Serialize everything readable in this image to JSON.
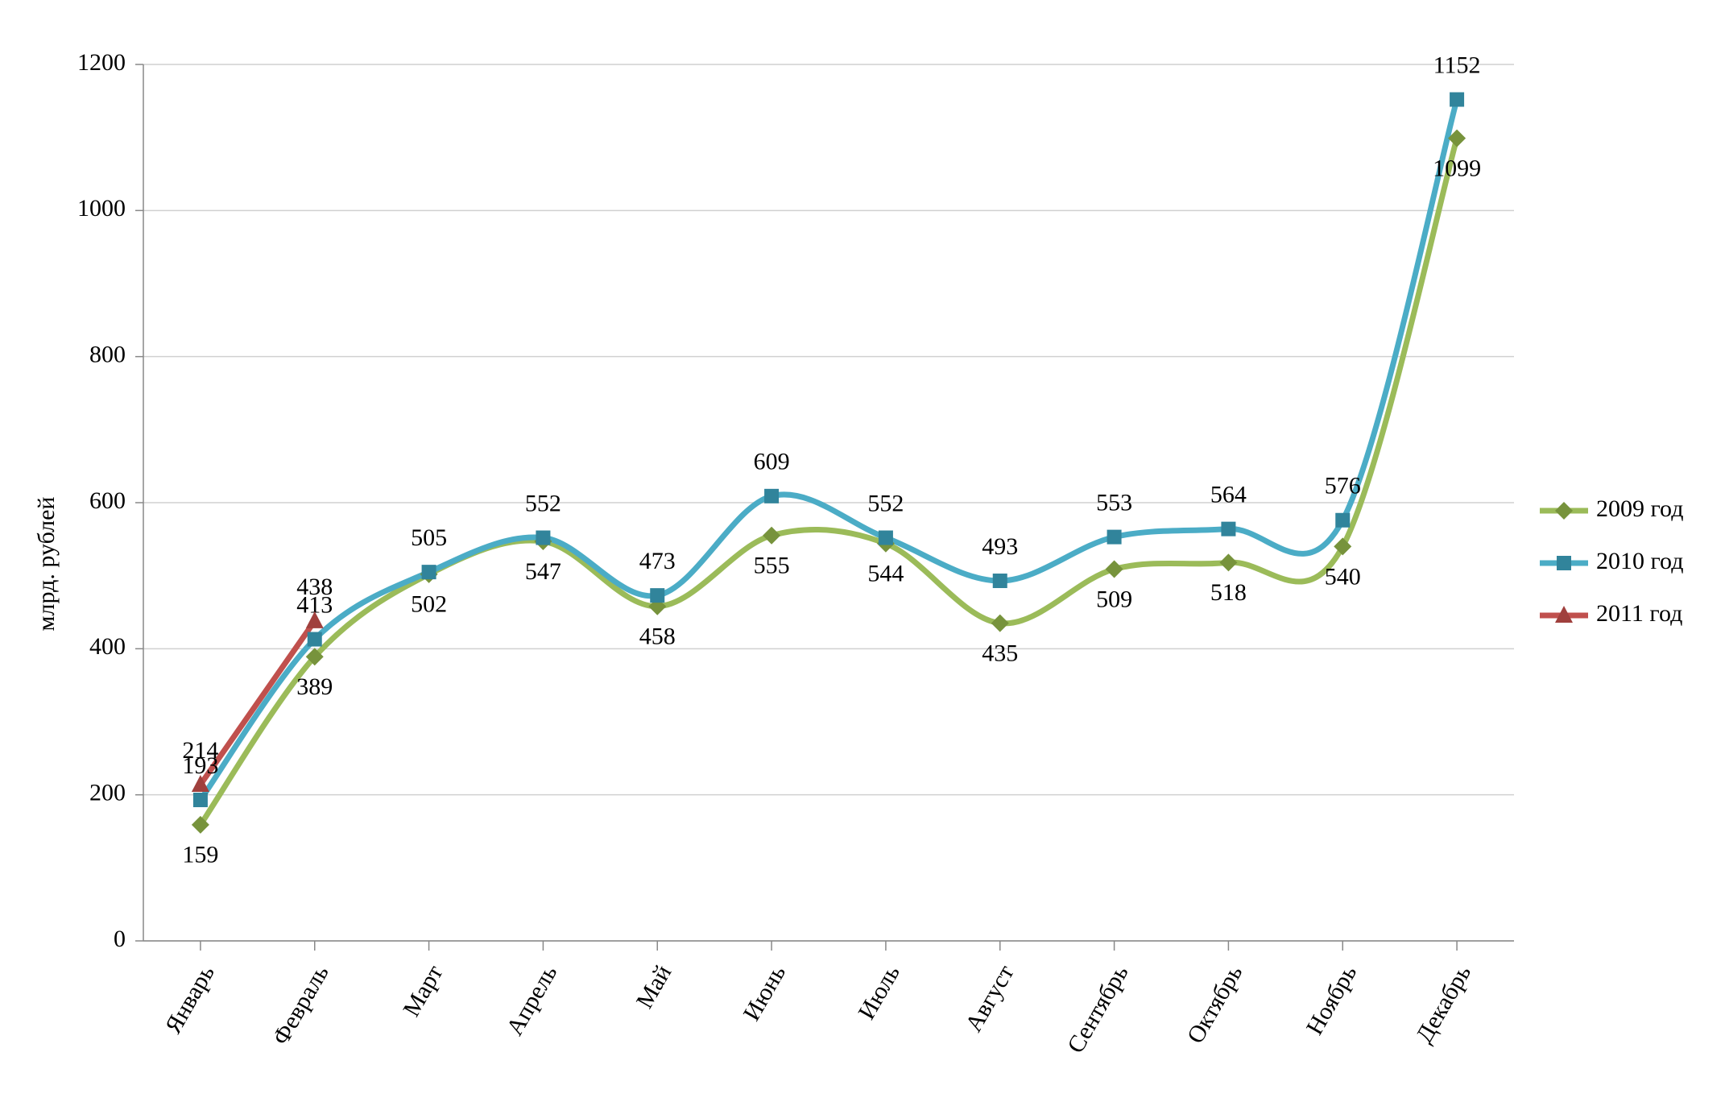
{
  "chart_data": {
    "type": "line",
    "y_label": "млрд. рублей",
    "categories": [
      "Январь",
      "Февраль",
      "Март",
      "Апрель",
      "Май",
      "Июнь",
      "Июль",
      "Август",
      "Сентябрь",
      "Октябрь",
      "Ноябрь",
      "Декабрь"
    ],
    "series": [
      {
        "name": "2009 год",
        "color": "#9bbb59",
        "marker_color": "#77933c",
        "label_color": "#1f4a0a",
        "marker": "diamond",
        "label_position": "below",
        "values": [
          159,
          389,
          502,
          547,
          458,
          555,
          544,
          435,
          509,
          518,
          540,
          1099
        ]
      },
      {
        "name": "2010 год",
        "color": "#4bacc6",
        "marker_color": "#31849b",
        "label_color": "#1c1c8c",
        "marker": "square",
        "label_position": "above",
        "values": [
          193,
          413,
          505,
          552,
          473,
          609,
          552,
          493,
          553,
          564,
          576,
          1152
        ]
      },
      {
        "name": "2011 год",
        "color": "#c0504d",
        "marker_color": "#a0403d",
        "label_color": "#8b1a1a",
        "marker": "triangle",
        "label_position": "above",
        "values": [
          214,
          438,
          null,
          null,
          null,
          null,
          null,
          null,
          null,
          null,
          null,
          null
        ]
      }
    ],
    "ylim": [
      0,
      1200
    ],
    "yticks": [
      0,
      200,
      400,
      600,
      800,
      1000,
      1200
    ],
    "grid": true,
    "smooth": true,
    "legend": "right"
  }
}
